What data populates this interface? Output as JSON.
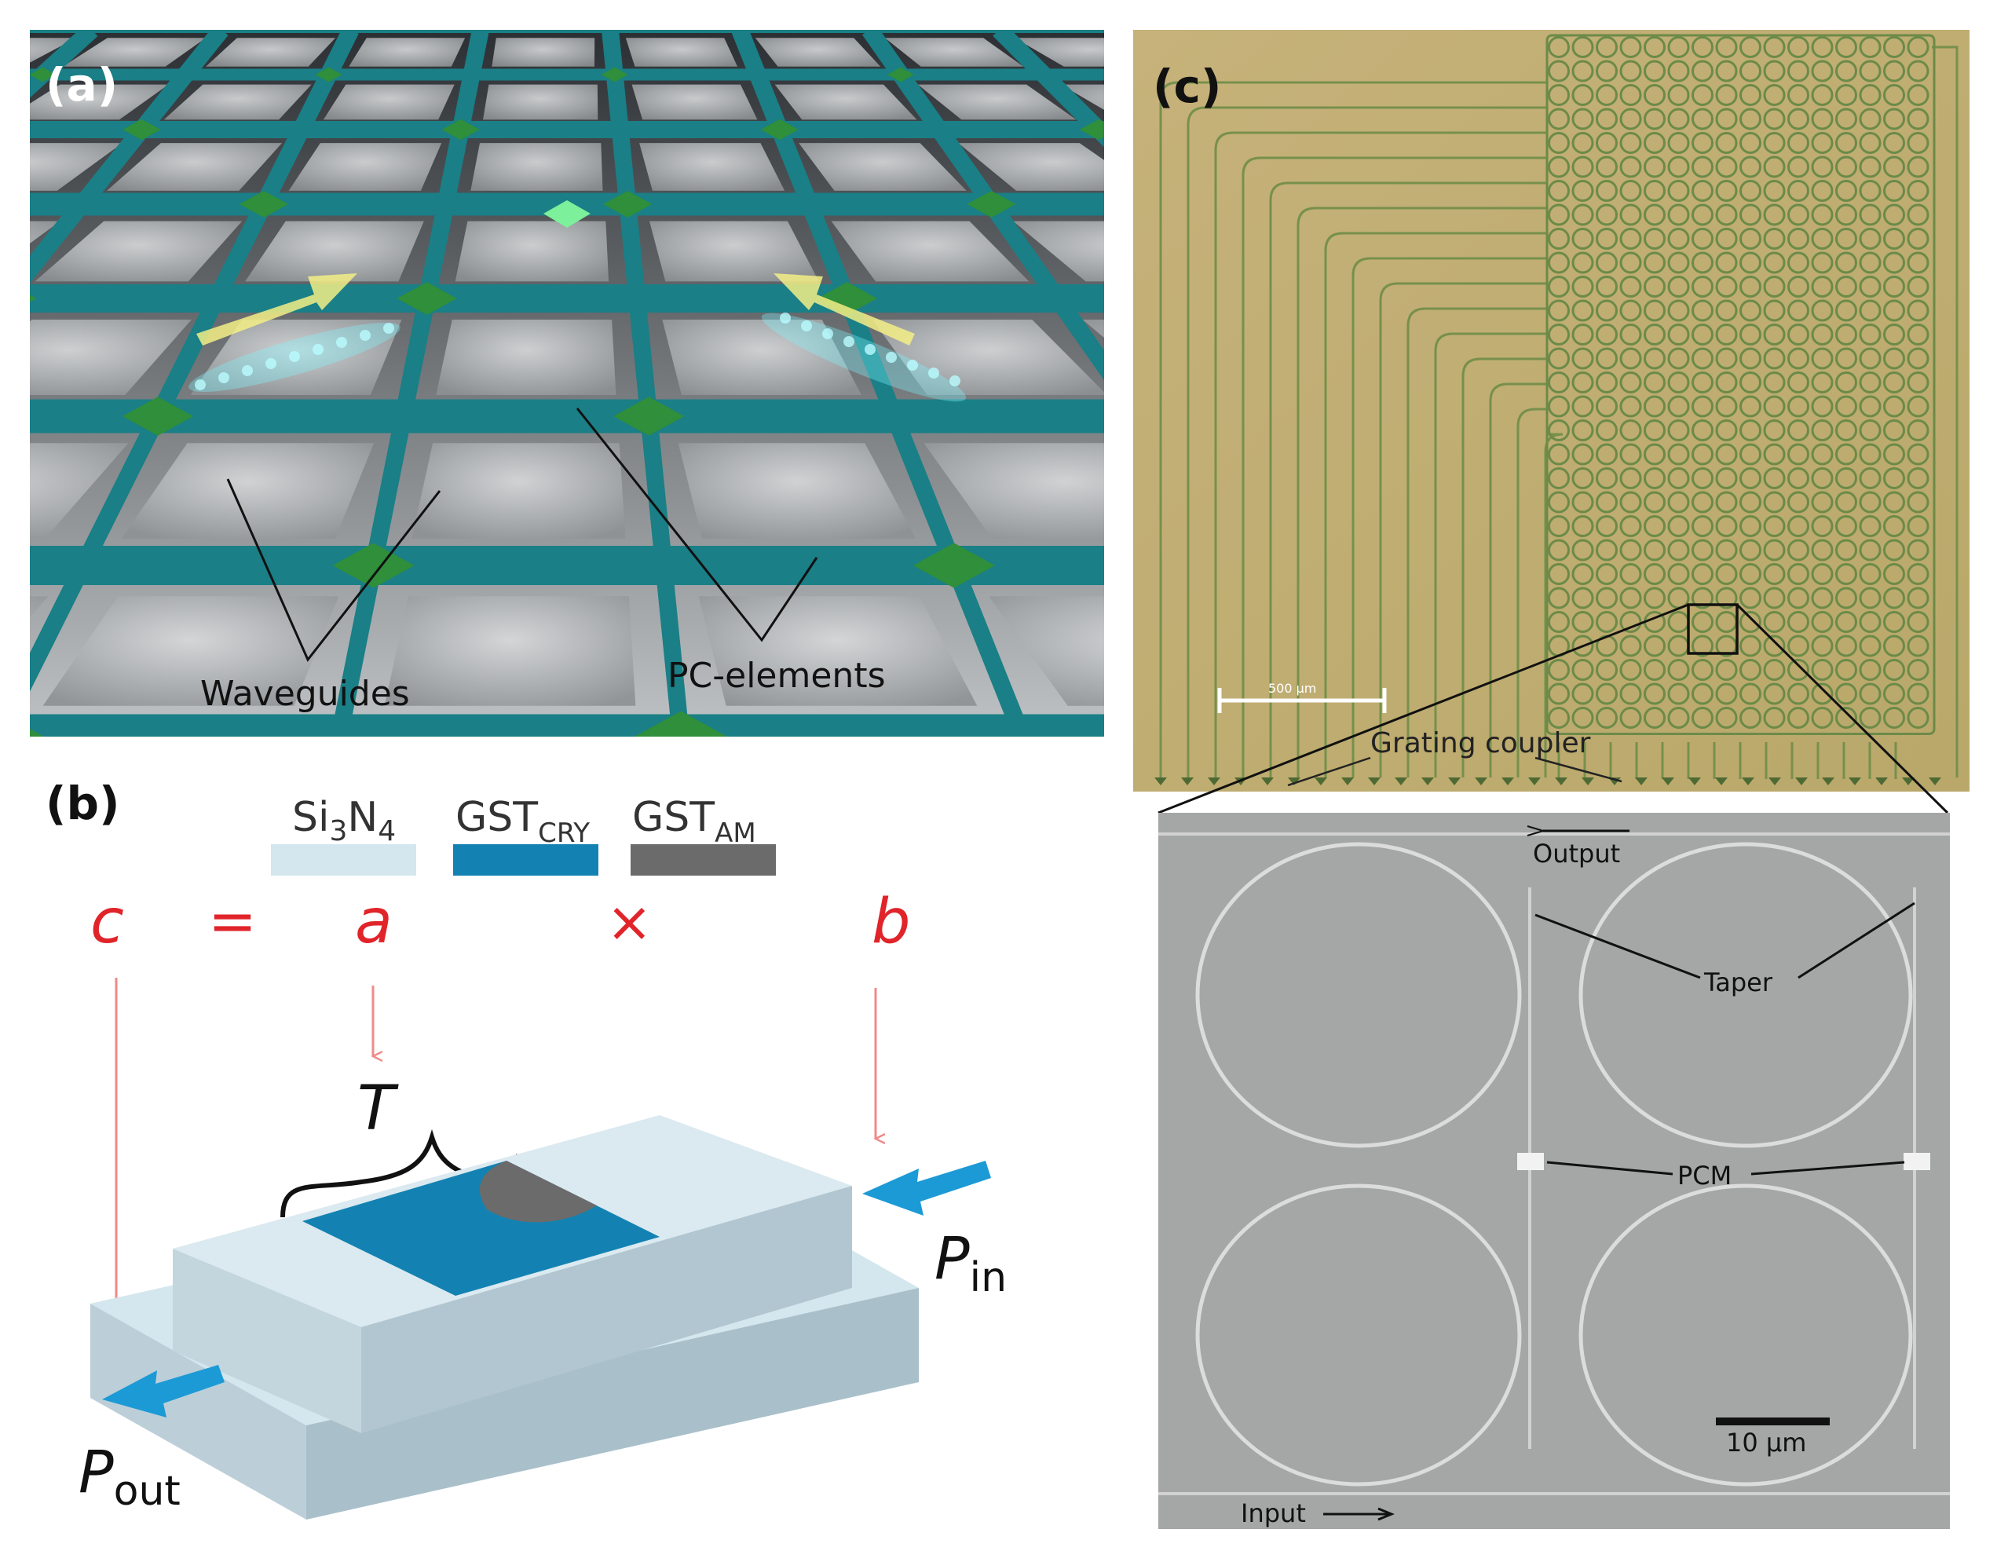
{
  "panel_a": {
    "label": "(a)",
    "waveguides_label": "Waveguides",
    "pc_elements_label": "PC-elements",
    "colors": {
      "waveguide": "#1a7f86",
      "element": "#2f8f3a",
      "glow": "#7ff6ff",
      "arrow": "#f0ee7a"
    }
  },
  "panel_b": {
    "label": "(b)",
    "legend": [
      {
        "base": "Si",
        "sub1": "3",
        "mid": "N",
        "sub2": "4",
        "color": "#d4e6ee"
      },
      {
        "base": "GST",
        "sub1": "CRY",
        "mid": "",
        "sub2": "",
        "color": "#1382b2"
      },
      {
        "base": "GST",
        "sub1": "AM",
        "mid": "",
        "sub2": "",
        "color": "#6b6b6b"
      }
    ],
    "eq_c": "c",
    "eq_equals": "=",
    "eq_a": "a",
    "eq_times": "×",
    "eq_b": "b",
    "t_label": "T",
    "p_in_base": "P",
    "p_in_sub": "in",
    "p_out_base": "P",
    "p_out_sub": "out",
    "colors": {
      "equation": "#e0242a",
      "arrow": "#1c9ad6",
      "block_top": "#d4e6ee",
      "block_side": "#b3cad6"
    }
  },
  "panel_c": {
    "label": "(c)",
    "scale_top": "500 µm",
    "grating_coupler": "Grating coupler",
    "output_label": "Output",
    "taper_label": "Taper",
    "pcm_label": "PCM",
    "scale_bottom": "10 µm",
    "input_label": "Input",
    "colors": {
      "chip": "#c7b276",
      "lines": "#6f8a4a",
      "sem": "#a6a6a6"
    }
  }
}
